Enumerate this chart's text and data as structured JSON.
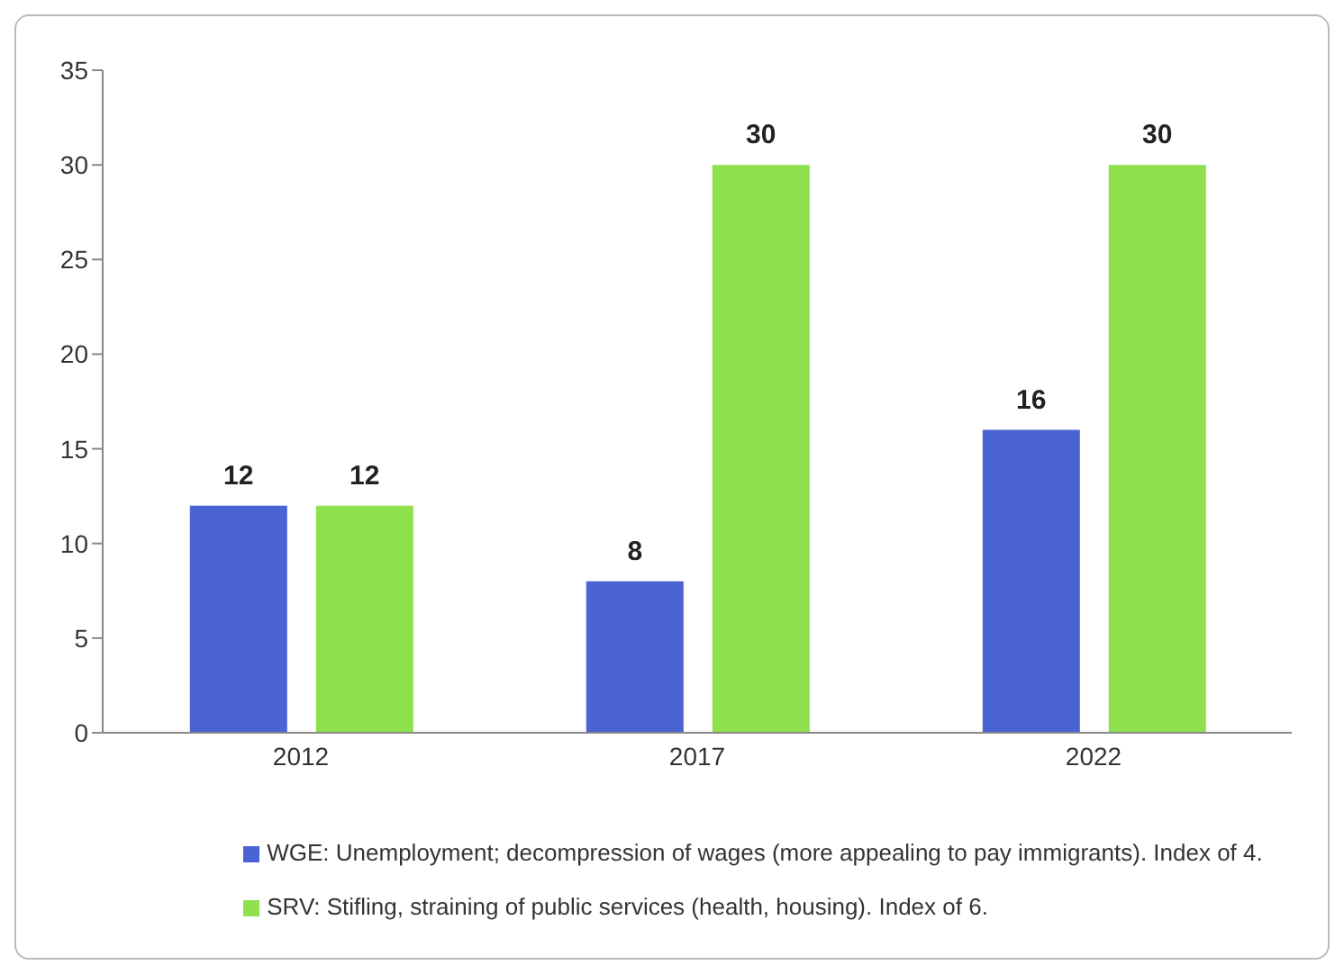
{
  "chart_data": {
    "type": "bar",
    "categories": [
      "2012",
      "2017",
      "2022"
    ],
    "series": [
      {
        "name": "WGE: Unemployment; decompression of wages (more appealing to pay immigrants). Index of 4.",
        "color": "#4a63d3",
        "values": [
          12,
          8,
          16
        ]
      },
      {
        "name": "SRV: Stifling, straining of public services (health, housing). Index of 6.",
        "color": "#8ee04c",
        "values": [
          12,
          30,
          30
        ]
      }
    ],
    "ylim": [
      0,
      35
    ],
    "yticks": [
      0,
      5,
      10,
      15,
      20,
      25,
      30,
      35
    ],
    "grid": false,
    "legend": "bottom",
    "data_labels": true
  }
}
